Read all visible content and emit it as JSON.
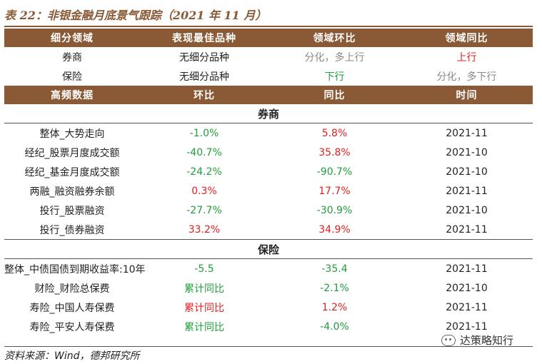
{
  "title": "表 22：非银金融月底景气跟踪（2021 年 11 月）",
  "header1": [
    "细分领域",
    "表现最佳品种",
    "领域环比",
    "领域同比"
  ],
  "summary_rows": [
    {
      "name": "券商",
      "best": "无细分品种",
      "mom": "分化，多上行",
      "yoy": "上行"
    },
    {
      "name": "保险",
      "best": "无细分品种",
      "mom": "下行",
      "yoy": "分化，多下行"
    }
  ],
  "header2": [
    "高频数据",
    "环比",
    "同比",
    "时间"
  ],
  "sections": [
    {
      "name": "券商",
      "rows": [
        {
          "name": "整体_大势走向",
          "mom": "-1.0%",
          "yoy": "5.8%",
          "date": "2021-11"
        },
        {
          "name": "经纪_股票月度成交额",
          "mom": "-40.7%",
          "yoy": "35.8%",
          "date": "2021-10"
        },
        {
          "name": "经纪_基金月度成交额",
          "mom": "-24.2%",
          "yoy": "-90.7%",
          "date": "2021-10"
        },
        {
          "name": "两融_融资融券余额",
          "mom": "0.3%",
          "yoy": "17.7%",
          "date": "2021-11"
        },
        {
          "name": "投行_股票融资",
          "mom": "-27.7%",
          "yoy": "-30.9%",
          "date": "2021-10"
        },
        {
          "name": "投行_债券融资",
          "mom": "33.2%",
          "yoy": "34.9%",
          "date": "2021-11"
        }
      ]
    },
    {
      "name": "保险",
      "rows": [
        {
          "name": "整体_中债国债到期收益率:10年",
          "mom": "-5.5",
          "yoy": "-35.4",
          "date": "2021-11"
        },
        {
          "name": "财险_财险总保费",
          "mom": "累计同比",
          "yoy": "-2.1%",
          "date": "2021-10"
        },
        {
          "name": "寿险_中国人寿保费",
          "mom": "累计同比",
          "yoy": "1.2%",
          "date": "2021-11"
        },
        {
          "name": "寿险_平安人寿保费",
          "mom": "累计同比",
          "yoy": "-4.0%",
          "date": "2021-11"
        }
      ]
    }
  ],
  "source": "资料来源：Wind，德邦研究所",
  "watermark": "达策略知行",
  "colors": {
    "header_bg": "#8a5a36",
    "up": "#e02020",
    "down": "#1f9e3a",
    "mixed": "#888888"
  }
}
